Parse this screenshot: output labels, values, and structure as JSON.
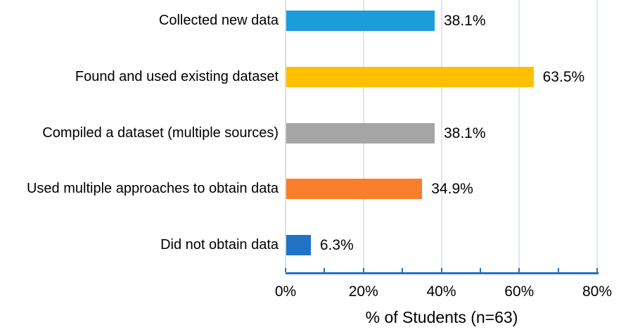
{
  "chart_data": {
    "type": "bar",
    "orientation": "horizontal",
    "title": "",
    "xlabel": "% of Students (n=63)",
    "ylabel": "",
    "categories": [
      "Collected new data",
      "Found and used existing dataset",
      "Compiled a dataset (multiple sources)",
      "Used multiple approaches to obtain data",
      "Did not obtain data"
    ],
    "values": [
      38.1,
      63.5,
      38.1,
      34.9,
      6.3
    ],
    "value_labels": [
      "38.1%",
      "63.5%",
      "38.1%",
      "34.9%",
      "6.3%"
    ],
    "bar_colors": [
      "#1A9DD9",
      "#FFC000",
      "#A5A5A5",
      "#F87E2B",
      "#1F72C6"
    ],
    "xlim": [
      0,
      80
    ],
    "x_tick_values": [
      0,
      20,
      40,
      60,
      80
    ],
    "x_tick_labels": [
      "0%",
      "20%",
      "40%",
      "60%",
      "80%"
    ],
    "minor_tick_step": 10,
    "grid": "vertical major gridlines every 20%",
    "legend": "none"
  },
  "colors": {
    "gridline": "#DCE7F5",
    "x_axis": "#2571C2",
    "tick": "#2571C2",
    "category_axis": "#DBDBDB",
    "text": "#000000",
    "background": "#FFFFFF"
  }
}
